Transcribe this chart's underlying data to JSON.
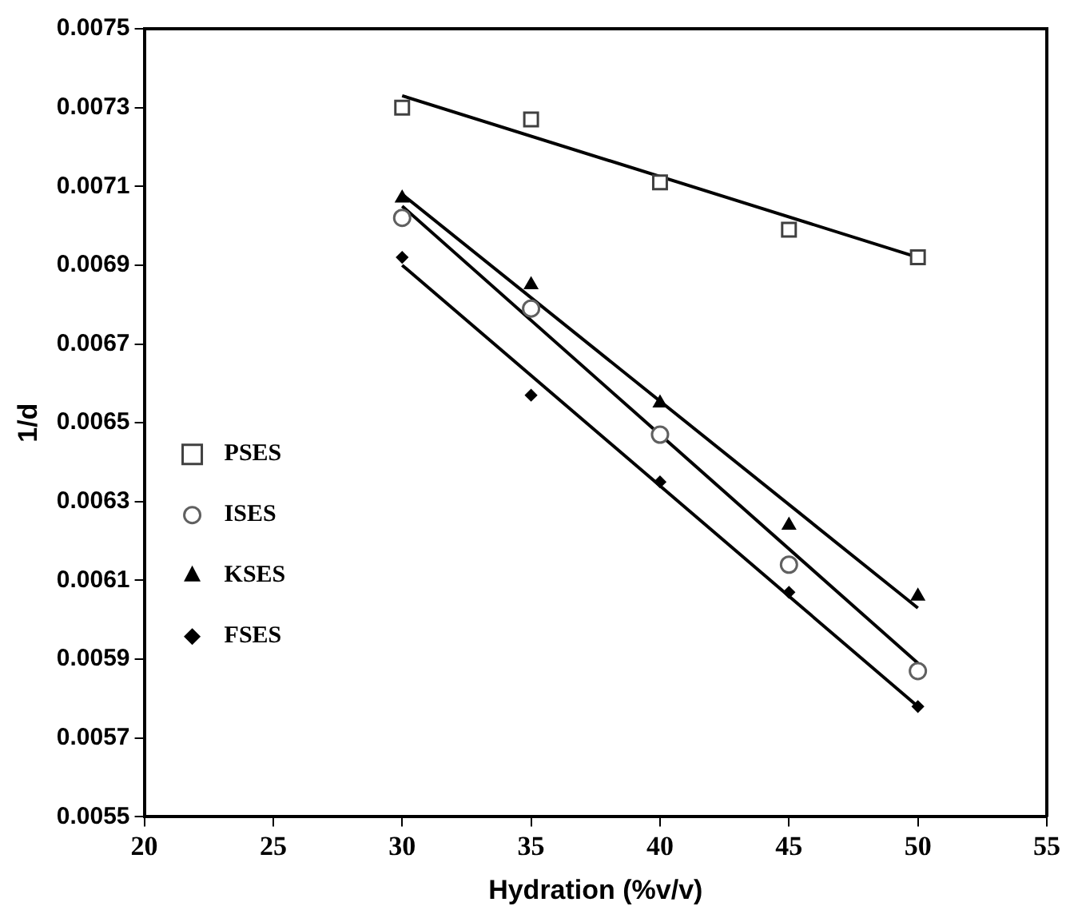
{
  "chart_data": {
    "type": "scatter",
    "xlabel": "Hydration (%v/v)",
    "ylabel": "1/d",
    "x": [
      30,
      35,
      40,
      45,
      50
    ],
    "xlim": [
      20,
      55
    ],
    "xticks": [
      20,
      25,
      30,
      35,
      40,
      45,
      50,
      55
    ],
    "ylim": [
      0.0055,
      0.0075
    ],
    "yticks": [
      0.0055,
      0.0057,
      0.0059,
      0.0061,
      0.0063,
      0.0065,
      0.0067,
      0.0069,
      0.0071,
      0.0073,
      0.0075
    ],
    "grid": false,
    "legend": "left",
    "series": [
      {
        "name": "PSES",
        "type": "scatter",
        "marker": "square",
        "color": "#404040",
        "values": [
          0.0073,
          0.00727,
          0.00711,
          0.00699,
          0.00692
        ]
      },
      {
        "name": "ISES",
        "type": "scatter",
        "marker": "circle",
        "color": "#606060",
        "values": [
          0.00702,
          0.00679,
          0.00647,
          0.00614,
          0.00587
        ]
      },
      {
        "name": "KSES",
        "type": "scatter",
        "marker": "triangle",
        "color": "#000000",
        "values": [
          0.00707,
          0.00685,
          0.00655,
          0.00624,
          0.00606
        ]
      },
      {
        "name": "FSES",
        "type": "scatter",
        "marker": "diamond",
        "color": "#000000",
        "values": [
          0.00692,
          0.00657,
          0.00635,
          0.00607,
          0.00578
        ]
      },
      {
        "type": "line",
        "marker": "none",
        "line_style": "solid",
        "color": "#000000",
        "values": [
          0.00733,
          null,
          null,
          null,
          0.00692
        ]
      },
      {
        "type": "line",
        "marker": "none",
        "line_style": "solid",
        "color": "#000000",
        "values": [
          0.00705,
          null,
          null,
          null,
          0.00589
        ]
      },
      {
        "type": "line",
        "marker": "none",
        "line_style": "solid",
        "color": "#000000",
        "values": [
          0.00708,
          null,
          null,
          null,
          0.00603
        ]
      },
      {
        "type": "line",
        "marker": "none",
        "line_style": "solid",
        "color": "#000000",
        "values": [
          0.0069,
          null,
          null,
          null,
          0.00578
        ]
      }
    ]
  }
}
